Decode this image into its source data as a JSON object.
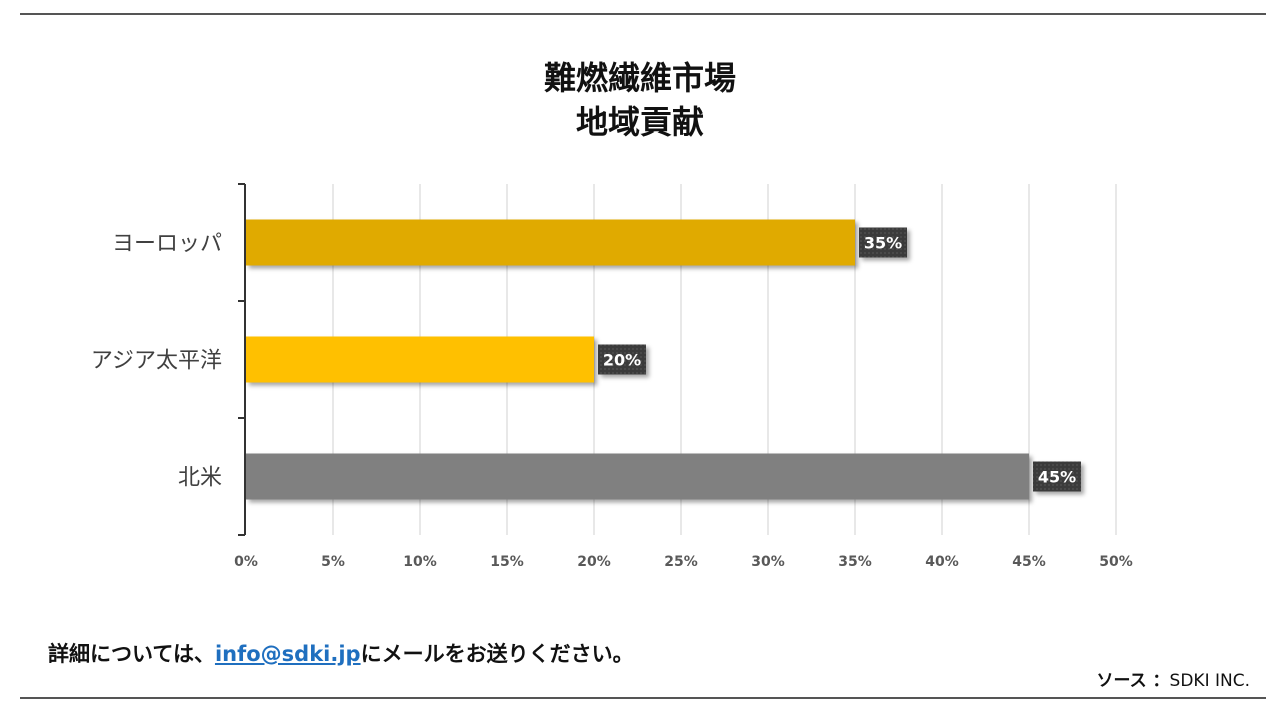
{
  "chart_data": {
    "type": "bar",
    "orientation": "horizontal",
    "title_line1": "難燃繊維市場",
    "title_line2": "地域貢献",
    "categories": [
      "ヨーロッパ",
      "アジア太平洋",
      "北米"
    ],
    "values": [
      35,
      20,
      45
    ],
    "data_labels": [
      "35%",
      "20%",
      "45%"
    ],
    "bar_colors": [
      "#E0AA00",
      "#FFC000",
      "#808080"
    ],
    "xlim": [
      0,
      50
    ],
    "x_ticks": [
      0,
      5,
      10,
      15,
      20,
      25,
      30,
      35,
      40,
      45,
      50
    ],
    "x_tick_labels": [
      "0%",
      "5%",
      "10%",
      "15%",
      "20%",
      "25%",
      "30%",
      "35%",
      "40%",
      "45%",
      "50%"
    ],
    "grid": "vertical",
    "legend": "none"
  },
  "footer": {
    "text_before": "詳細については、",
    "email": "info@sdki.jp",
    "text_after": "にメールをお送りください。"
  },
  "source": {
    "label": "ソース ：",
    "value": "SDKI INC."
  }
}
